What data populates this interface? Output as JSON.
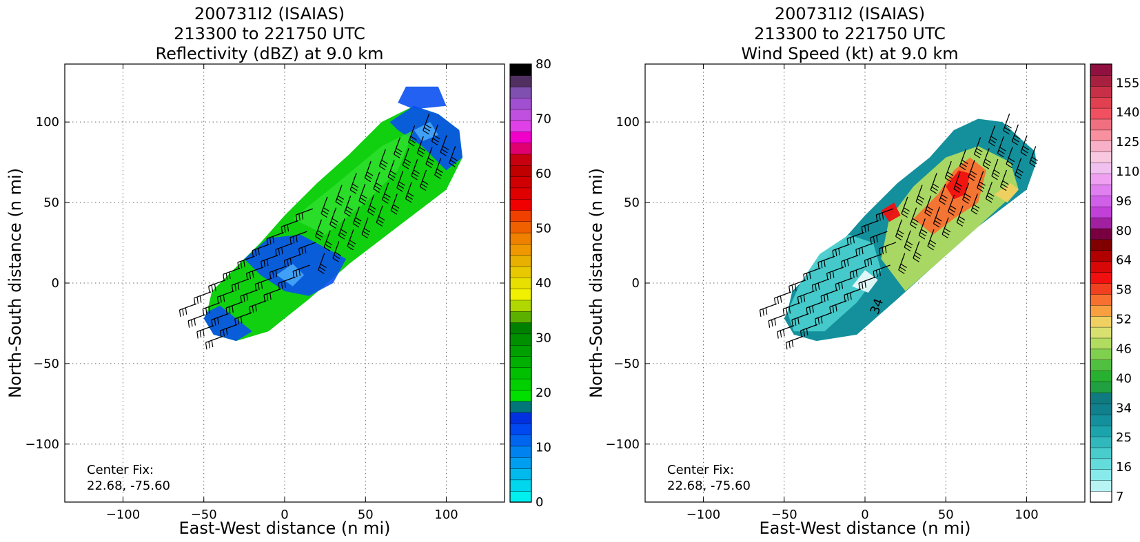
{
  "chart_data": [
    {
      "type": "heatmap",
      "title": [
        "200731I2 (ISAIAS)",
        "213300 to 221750 UTC",
        "Reflectivity (dBZ) at 9.0 km"
      ],
      "xlabel": "East-West distance (n mi)",
      "ylabel": "North-South distance (n mi)",
      "xlim": [
        -136,
        136
      ],
      "ylim": [
        -136,
        136
      ],
      "xticks": [
        -100,
        -50,
        0,
        50,
        100
      ],
      "yticks": [
        -100,
        -50,
        0,
        50,
        100
      ],
      "grid": true,
      "center_fix_label": "Center Fix:",
      "center_fix_value": "22.68, -75.60",
      "colorbar": {
        "min": 0,
        "max": 80,
        "tick_values": [
          0,
          10,
          20,
          30,
          40,
          50,
          60,
          70,
          80
        ],
        "tick_labels": [
          "0",
          "10",
          "20",
          "30",
          "40",
          "50",
          "60",
          "70",
          "80"
        ],
        "colors": [
          "#00f0f0",
          "#00d6ee",
          "#00baee",
          "#009ef0",
          "#0082f0",
          "#0066f0",
          "#0048f0",
          "#0030e0",
          "#00757a",
          "#00e000",
          "#00d000",
          "#00c000",
          "#00b000",
          "#00a000",
          "#009000",
          "#008000",
          "#5cb000",
          "#b0d800",
          "#f0f000",
          "#e8e000",
          "#e8c800",
          "#e8b000",
          "#f09800",
          "#f08000",
          "#f06000",
          "#f04000",
          "#f00000",
          "#e00000",
          "#d00000",
          "#c00000",
          "#c80010",
          "#e00070",
          "#f000c8",
          "#e040e8",
          "#c050e0",
          "#a050d0",
          "#8050b0",
          "#503060",
          "#000000"
        ]
      },
      "swath": {
        "sections": [
          {
            "cx": -40,
            "cy": -10,
            "hw": 12
          },
          {
            "cx": 10,
            "cy": 20,
            "hw": 20
          },
          {
            "cx": 60,
            "cy": 60,
            "hw": 22
          },
          {
            "cx": 100,
            "cy": 100,
            "hw": 15
          }
        ],
        "levels": [
          {
            "value": 22,
            "color": "#1ee81e"
          },
          {
            "value": 20,
            "color": "#10d010"
          },
          {
            "value": 24,
            "color": "#30e030"
          },
          {
            "value": 12,
            "color": "#0a40f0"
          },
          {
            "value": 8,
            "color": "#0a80f0"
          },
          {
            "value": 2,
            "color": "#80f0f0"
          }
        ]
      },
      "barbs_label": "wind barbs"
    },
    {
      "type": "heatmap",
      "title": [
        "200731I2 (ISAIAS)",
        "213300 to 221750 UTC",
        "Wind Speed (kt) at 9.0 km"
      ],
      "xlabel": "East-West distance (n mi)",
      "ylabel": "North-South distance (n mi)",
      "xlim": [
        -136,
        136
      ],
      "ylim": [
        -136,
        136
      ],
      "xticks": [
        -100,
        -50,
        0,
        50,
        100
      ],
      "yticks": [
        -100,
        -50,
        0,
        50,
        100
      ],
      "grid": true,
      "center_fix_label": "Center Fix:",
      "center_fix_value": "22.68, -75.60",
      "contour_label": "34",
      "colorbar": {
        "tick_values": [
          7,
          16,
          25,
          34,
          40,
          46,
          52,
          58,
          64,
          80,
          96,
          110,
          125,
          140,
          155
        ],
        "tick_labels": [
          "7",
          "16",
          "25",
          "34",
          "40",
          "46",
          "52",
          "58",
          "64",
          "80",
          "96",
          "110",
          "125",
          "140",
          "155"
        ],
        "colors": [
          "#ffffff",
          "#b8f4f4",
          "#88eaea",
          "#64dcdc",
          "#48cccc",
          "#30b8bc",
          "#1ca4ac",
          "#14909c",
          "#10808c",
          "#0f7a80",
          "#20a040",
          "#28b030",
          "#50c040",
          "#80d050",
          "#b0dc60",
          "#d8e070",
          "#f0d060",
          "#f8a040",
          "#f87030",
          "#f04020",
          "#f01010",
          "#d80808",
          "#b00000",
          "#800000",
          "#780040",
          "#a020a0",
          "#c040d8",
          "#d060e8",
          "#e080f0",
          "#f0a0f0",
          "#f0c0f0",
          "#f8c8e0",
          "#f8b0c8",
          "#f890a0",
          "#f07080",
          "#f05060",
          "#e04050",
          "#c83048",
          "#a82040",
          "#901040"
        ]
      },
      "barbs_label": "wind barbs"
    }
  ]
}
